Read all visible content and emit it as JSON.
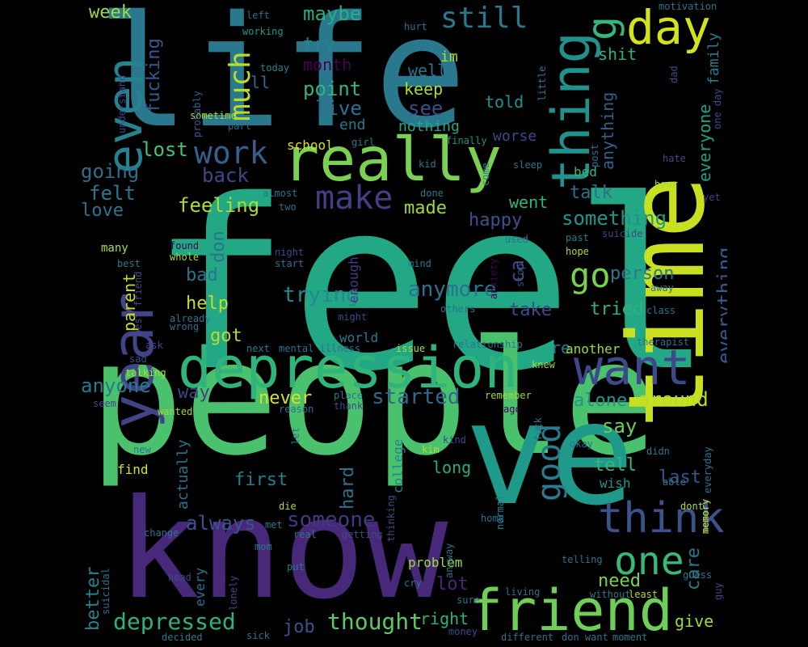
{
  "words": [
    {
      "text": "feel",
      "color": "#22a884"
    },
    {
      "text": "people",
      "color": "#4ac16d"
    },
    {
      "text": "life",
      "color": "#2a788e"
    },
    {
      "text": "time",
      "color": "#c8e020"
    },
    {
      "text": "know",
      "color": "#482878"
    },
    {
      "text": "ve",
      "color": "#1f9a8a"
    },
    {
      "text": "depression",
      "color": "#2fb47c"
    },
    {
      "text": "really",
      "color": "#7ad151"
    },
    {
      "text": "want",
      "color": "#3e4989"
    },
    {
      "text": "friend",
      "color": "#6ece58"
    },
    {
      "text": "think",
      "color": "#3b528b"
    },
    {
      "text": "year",
      "color": "#414487"
    },
    {
      "text": "even",
      "color": "#26828e"
    },
    {
      "text": "thing",
      "color": "#21918c"
    },
    {
      "text": "day",
      "color": "#d2e21b"
    },
    {
      "text": "one",
      "color": "#38b977"
    },
    {
      "text": "make",
      "color": "#433e85"
    },
    {
      "text": "work",
      "color": "#355f8d"
    },
    {
      "text": "go",
      "color": "#7ad151"
    },
    {
      "text": "good",
      "color": "#287c8e"
    },
    {
      "text": "still",
      "color": "#29798e"
    },
    {
      "text": "much",
      "color": "#b5de2b"
    },
    {
      "text": "g",
      "color": "#35b779"
    },
    {
      "text": "depressed",
      "color": "#2db27d"
    },
    {
      "text": "thought",
      "color": "#5ec962"
    },
    {
      "text": "someone",
      "color": "#453781"
    },
    {
      "text": "started",
      "color": "#31688e"
    },
    {
      "text": "anymore",
      "color": "#2c728e"
    },
    {
      "text": "trying",
      "color": "#23898e"
    },
    {
      "text": "feeling",
      "color": "#addc30"
    },
    {
      "text": "anyone",
      "color": "#2a788e"
    },
    {
      "text": "always",
      "color": "#3b528b"
    },
    {
      "text": "everything",
      "color": "#375a8c"
    },
    {
      "text": "something",
      "color": "#1f958b"
    },
    {
      "text": "around",
      "color": "#b5de2b"
    },
    {
      "text": "maybe",
      "color": "#27ad81"
    },
    {
      "text": "point",
      "color": "#31b57b"
    },
    {
      "text": "live",
      "color": "#2d708e"
    },
    {
      "text": "see",
      "color": "#3d4d8a"
    },
    {
      "text": "lost",
      "color": "#4ac16d"
    },
    {
      "text": "back",
      "color": "#3f4788"
    },
    {
      "text": "going",
      "color": "#2e6f8e"
    },
    {
      "text": "felt",
      "color": "#2a778e"
    },
    {
      "text": "love",
      "color": "#2c738e"
    },
    {
      "text": "bad",
      "color": "#2d718e"
    },
    {
      "text": "help",
      "color": "#c2df23"
    },
    {
      "text": "got",
      "color": "#b5de2b"
    },
    {
      "text": "way",
      "color": "#414487"
    },
    {
      "text": "never",
      "color": "#d8e219"
    },
    {
      "text": "happy",
      "color": "#3b528b"
    },
    {
      "text": "made",
      "color": "#9fda3a"
    },
    {
      "text": "went",
      "color": "#31b57b"
    },
    {
      "text": "talk",
      "color": "#2d708e"
    },
    {
      "text": "person",
      "color": "#2a788e"
    },
    {
      "text": "tried",
      "color": "#2db27d"
    },
    {
      "text": "take",
      "color": "#3e4a89"
    },
    {
      "text": "alone",
      "color": "#1f958b"
    },
    {
      "text": "say",
      "color": "#6ece58"
    },
    {
      "text": "tell",
      "color": "#35b779"
    },
    {
      "text": "last",
      "color": "#3b528b"
    },
    {
      "text": "care",
      "color": "#2a788e"
    },
    {
      "text": "need",
      "color": "#7ad151"
    },
    {
      "text": "give",
      "color": "#9fda3a"
    },
    {
      "text": "hard",
      "color": "#2c728e"
    },
    {
      "text": "first",
      "color": "#287d8e"
    },
    {
      "text": "long",
      "color": "#27ad81"
    },
    {
      "text": "lot",
      "color": "#482878"
    },
    {
      "text": "job",
      "color": "#3b528b"
    },
    {
      "text": "right",
      "color": "#2db27d"
    },
    {
      "text": "better",
      "color": "#26828e"
    },
    {
      "text": "week",
      "color": "#9fda3a"
    },
    {
      "text": "try",
      "color": "#26828e"
    },
    {
      "text": "well",
      "color": "#2d708e"
    },
    {
      "text": "keep",
      "color": "#addc30"
    },
    {
      "text": "told",
      "color": "#21918c"
    },
    {
      "text": "month",
      "color": "#440154"
    },
    {
      "text": "im",
      "color": "#addc30"
    },
    {
      "text": "end",
      "color": "#2a788e"
    },
    {
      "text": "nothing",
      "color": "#22a884"
    },
    {
      "text": "shit",
      "color": "#2db27d"
    },
    {
      "text": "fucking",
      "color": "#38588c"
    },
    {
      "text": "ll",
      "color": "#2f6c8e"
    },
    {
      "text": "anything",
      "color": "#355f8d"
    },
    {
      "text": "everyone",
      "color": "#1fa187"
    },
    {
      "text": "family",
      "color": "#2a788e"
    },
    {
      "text": "school",
      "color": "#d8e219"
    },
    {
      "text": "worse",
      "color": "#3e4989"
    },
    {
      "text": "bed",
      "color": "#35b779"
    },
    {
      "text": "parent",
      "color": "#c8e020"
    },
    {
      "text": "don",
      "color": "#2c738e"
    },
    {
      "text": "ca",
      "color": "#3e4a89"
    },
    {
      "text": "re",
      "color": "#2a788e"
    },
    {
      "text": "actually",
      "color": "#2d708e"
    },
    {
      "text": "find",
      "color": "#d8e219"
    },
    {
      "text": "wish",
      "color": "#21918c"
    },
    {
      "text": "problem",
      "color": "#9fda3a"
    },
    {
      "text": "every",
      "color": "#2c738e"
    },
    {
      "text": "college",
      "color": "#26828e"
    },
    {
      "text": "enough",
      "color": "#443a83"
    },
    {
      "text": "world",
      "color": "#2a788e"
    },
    {
      "text": "another",
      "color": "#9fda3a"
    },
    {
      "text": "motivation",
      "color": "#2c728e"
    },
    {
      "text": "left",
      "color": "#2d708e"
    },
    {
      "text": "working",
      "color": "#1f958b"
    },
    {
      "text": "hurt",
      "color": "#2c738e"
    },
    {
      "text": "today",
      "color": "#26828e"
    },
    {
      "text": "understand",
      "color": "#3e4989"
    },
    {
      "text": "little",
      "color": "#2a788e"
    },
    {
      "text": "dad",
      "color": "#3e4a89"
    },
    {
      "text": "sometime",
      "color": "#addc30"
    },
    {
      "text": "part",
      "color": "#2d708e"
    },
    {
      "text": "probably",
      "color": "#355f8d"
    },
    {
      "text": "girl",
      "color": "#2a788e"
    },
    {
      "text": "finally",
      "color": "#1f958b"
    },
    {
      "text": "post",
      "color": "#2c738e"
    },
    {
      "text": "one day",
      "color": "#3e4989"
    },
    {
      "text": "sleep",
      "color": "#2d708e"
    },
    {
      "text": "hate",
      "color": "#3e4a89"
    },
    {
      "text": "kid",
      "color": "#2a788e"
    },
    {
      "text": "come",
      "color": "#26828e"
    },
    {
      "text": "hour",
      "color": "#addc30"
    },
    {
      "text": "almost",
      "color": "#2c738e"
    },
    {
      "text": "done",
      "color": "#2a788e"
    },
    {
      "text": "two",
      "color": "#2d708e"
    },
    {
      "text": "yet",
      "color": "#3e4989"
    },
    {
      "text": "many",
      "color": "#addc30"
    },
    {
      "text": "found",
      "color": "#440154"
    },
    {
      "text": "whole",
      "color": "#addc30"
    },
    {
      "text": "night",
      "color": "#3e4a89"
    },
    {
      "text": "start",
      "color": "#2c738e"
    },
    {
      "text": "mind",
      "color": "#2a788e"
    },
    {
      "text": "used",
      "color": "#2d708e"
    },
    {
      "text": "hope",
      "color": "#addc30"
    },
    {
      "text": "past",
      "color": "#2a788e"
    },
    {
      "text": "suicide",
      "color": "#3e4989"
    },
    {
      "text": "anxiety",
      "color": "#440154"
    },
    {
      "text": "stop",
      "color": "#3e4a89"
    },
    {
      "text": "away",
      "color": "#2c738e"
    },
    {
      "text": "class",
      "color": "#2d708e"
    },
    {
      "text": "best",
      "color": "#2a788e"
    },
    {
      "text": "best friend",
      "color": "#3e4989"
    },
    {
      "text": "might",
      "color": "#3e4a89"
    },
    {
      "text": "others",
      "color": "#2c738e"
    },
    {
      "text": "already",
      "color": "#2a788e"
    },
    {
      "text": "wrong",
      "color": "#2d708e"
    },
    {
      "text": "ask",
      "color": "#3e4989"
    },
    {
      "text": "next",
      "color": "#2a788e"
    },
    {
      "text": "mental illness",
      "color": "#2c738e"
    },
    {
      "text": "issue",
      "color": "#addc30"
    },
    {
      "text": "relationship",
      "color": "#2a788e"
    },
    {
      "text": "therapist",
      "color": "#2d708e"
    },
    {
      "text": "sad",
      "color": "#3e4a89"
    },
    {
      "text": "talking",
      "color": "#addc30"
    },
    {
      "text": "knew",
      "color": "#9fda3a"
    },
    {
      "text": "seem",
      "color": "#3e4989"
    },
    {
      "text": "place",
      "color": "#2a788e"
    },
    {
      "text": "thank",
      "color": "#3e4a89"
    },
    {
      "text": "reason",
      "color": "#2c738e"
    },
    {
      "text": "remember",
      "color": "#9fda3a"
    },
    {
      "text": "ago",
      "color": "#440154"
    },
    {
      "text": "wanted",
      "color": "#9fda3a"
    },
    {
      "text": "fuck",
      "color": "#2a788e"
    },
    {
      "text": "let",
      "color": "#2d708e"
    },
    {
      "text": "everyday",
      "color": "#2c738e"
    },
    {
      "text": "new",
      "color": "#2a788e"
    },
    {
      "text": "kind",
      "color": "#3e4989"
    },
    {
      "text": "okay",
      "color": "#2d708e"
    },
    {
      "text": "didn",
      "color": "#2a788e"
    },
    {
      "text": "kim",
      "color": "#addc30"
    },
    {
      "text": "normal",
      "color": "#26828e"
    },
    {
      "text": "able",
      "color": "#2c738e"
    },
    {
      "text": "thinking",
      "color": "#3e4989"
    },
    {
      "text": "die",
      "color": "#addc30"
    },
    {
      "text": "memory",
      "color": "#c8e020"
    },
    {
      "text": "change",
      "color": "#2c738e"
    },
    {
      "text": "met",
      "color": "#2a788e"
    },
    {
      "text": "real",
      "color": "#2c738e"
    },
    {
      "text": "getting",
      "color": "#3e4a89"
    },
    {
      "text": "home",
      "color": "#2d708e"
    },
    {
      "text": "dont",
      "color": "#addc30"
    },
    {
      "text": "mom",
      "color": "#2a788e"
    },
    {
      "text": "anyway",
      "color": "#2c738e"
    },
    {
      "text": "put",
      "color": "#2a788e"
    },
    {
      "text": "telling",
      "color": "#2c738e"
    },
    {
      "text": "guess",
      "color": "#2a788e"
    },
    {
      "text": "suicidal",
      "color": "#2c738e"
    },
    {
      "text": "head",
      "color": "#3e4989"
    },
    {
      "text": "lonely",
      "color": "#3e4a89"
    },
    {
      "text": "cry",
      "color": "#2a788e"
    },
    {
      "text": "sure",
      "color": "#2c738e"
    },
    {
      "text": "living",
      "color": "#2d708e"
    },
    {
      "text": "without",
      "color": "#2a788e"
    },
    {
      "text": "least",
      "color": "#addc30"
    },
    {
      "text": "guy",
      "color": "#3e4989"
    },
    {
      "text": "sick",
      "color": "#2c738e"
    },
    {
      "text": "money",
      "color": "#3e4a89"
    },
    {
      "text": "decided",
      "color": "#2a788e"
    },
    {
      "text": "different",
      "color": "#2c738e"
    },
    {
      "text": "don want",
      "color": "#2d708e"
    },
    {
      "text": "moment",
      "color": "#2a788e"
    }
  ]
}
